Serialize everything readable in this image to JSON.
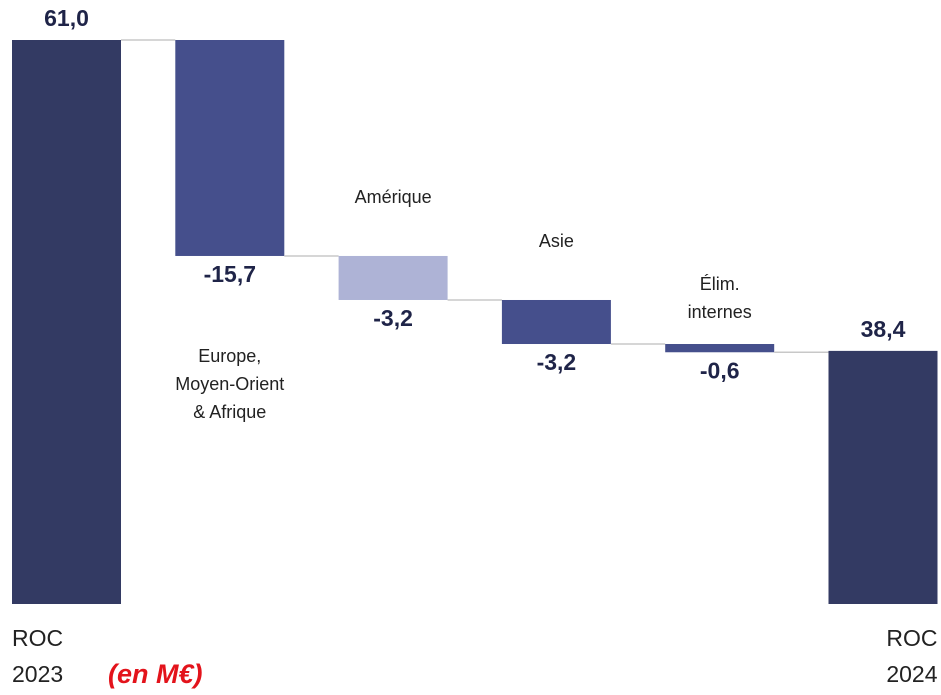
{
  "chart_data": {
    "type": "waterfall",
    "annotation": "(en M€)",
    "categories": [
      [
        "ROC",
        "2023"
      ],
      [
        "Europe,",
        "Moyen-Orient",
        "& Afrique"
      ],
      [
        "Amérique"
      ],
      [
        "Asie"
      ],
      [
        "Élim.",
        "internes"
      ],
      [
        "ROC",
        "2024"
      ]
    ],
    "values": [
      61.0,
      -15.7,
      -3.2,
      -3.2,
      -0.6,
      38.4
    ],
    "value_labels": [
      "61,0",
      "-15,7",
      "-3,2",
      "-3,2",
      "-0,6",
      "38,4"
    ],
    "totals": [
      true,
      false,
      false,
      false,
      false,
      true
    ],
    "colors": [
      "#333a63",
      "#454f8c",
      "#aeb3d6",
      "#454f8c",
      "#454f8c",
      "#333a63"
    ],
    "ylim": [
      20,
      61
    ]
  }
}
